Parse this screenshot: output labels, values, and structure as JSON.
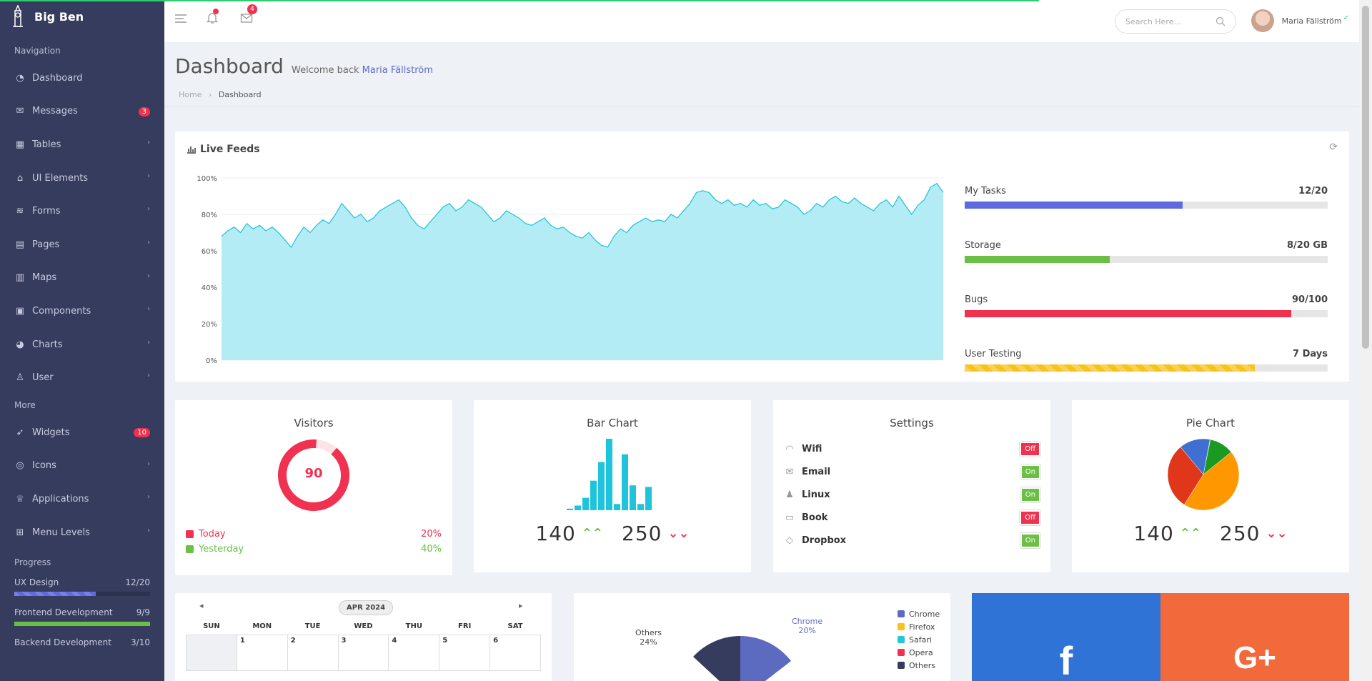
{
  "app": {
    "name": "Big Ben"
  },
  "sidebar": {
    "nav_header": "Navigation",
    "items": [
      {
        "label": "Dashboard",
        "icon": "dashboard-icon"
      },
      {
        "label": "Messages",
        "icon": "envelope-icon",
        "badge": "3"
      },
      {
        "label": "Tables",
        "icon": "table-icon"
      },
      {
        "label": "UI Elements",
        "icon": "gift-icon"
      },
      {
        "label": "Forms",
        "icon": "layers-icon"
      },
      {
        "label": "Pages",
        "icon": "pages-icon"
      },
      {
        "label": "Maps",
        "icon": "map-icon"
      },
      {
        "label": "Components",
        "icon": "briefcase-icon"
      },
      {
        "label": "Charts",
        "icon": "pie-icon"
      },
      {
        "label": "User",
        "icon": "user-icon"
      }
    ],
    "more_header": "More",
    "more_items": [
      {
        "label": "Widgets",
        "icon": "rocket-icon",
        "badge": "10"
      },
      {
        "label": "Icons",
        "icon": "compass-icon"
      },
      {
        "label": "Applications",
        "icon": "trophy-icon"
      },
      {
        "label": "Menu Levels",
        "icon": "sitemap-icon"
      }
    ],
    "progress_header": "Progress",
    "progress": [
      {
        "label": "UX Design",
        "value": "12/20",
        "fraction": 0.6,
        "color": "#5f6ae0"
      },
      {
        "label": "Frontend Development",
        "value": "9/9",
        "fraction": 1.0,
        "color": "#6abf45"
      },
      {
        "label": "Backend Development",
        "value": "3/10"
      }
    ]
  },
  "topbar": {
    "notif_badge": "",
    "mail_badge": "4",
    "search_placeholder": "Search Here...",
    "user_name": "Maria Fällström"
  },
  "page": {
    "title": "Dashboard",
    "welcome": "Welcome back",
    "welcome_name": "Maria Fällström",
    "breadcrumb_home": "Home",
    "breadcrumb_current": "Dashboard"
  },
  "live_feeds": {
    "title": "Live Feeds",
    "y_ticks": [
      "100%",
      "80%",
      "60%",
      "40%",
      "20%",
      "0%"
    ],
    "progress": [
      {
        "label": "My Tasks",
        "value": "12/20",
        "fraction": 0.6,
        "color": "#5f6ae0"
      },
      {
        "label": "Storage",
        "value": "8/20 GB",
        "fraction": 0.4,
        "color": "#6abf45"
      },
      {
        "label": "Bugs",
        "value": "90/100",
        "fraction": 0.9,
        "color": "#f0314f"
      },
      {
        "label": "User Testing",
        "value": "7 Days",
        "fraction": 0.8,
        "color": "#f8c21c"
      }
    ]
  },
  "chart_data": [
    {
      "type": "area",
      "title": "Live Feeds",
      "ylim": [
        0,
        100
      ],
      "y_unit": "%",
      "color": "#26c6da",
      "values": [
        68,
        71,
        73,
        70,
        75,
        72,
        74,
        71,
        73,
        70,
        66,
        62,
        68,
        73,
        70,
        74,
        77,
        75,
        80,
        86,
        82,
        78,
        80,
        76,
        78,
        82,
        84,
        86,
        88,
        84,
        78,
        74,
        72,
        76,
        80,
        84,
        86,
        82,
        84,
        88,
        86,
        84,
        80,
        76,
        78,
        82,
        80,
        78,
        75,
        74,
        76,
        78,
        74,
        72,
        73,
        70,
        68,
        67,
        70,
        66,
        63,
        62,
        68,
        72,
        70,
        74,
        76,
        78,
        76,
        77,
        76,
        80,
        78,
        82,
        86,
        92,
        93,
        92,
        88,
        86,
        88,
        85,
        86,
        84,
        88,
        85,
        86,
        83,
        84,
        88,
        86,
        84,
        80,
        82,
        86,
        84,
        88,
        90,
        87,
        86,
        89,
        86,
        84,
        82,
        86,
        88,
        84,
        90,
        85,
        80,
        85,
        88,
        95,
        97,
        92
      ]
    },
    {
      "type": "pie",
      "title": "Visitors",
      "center_label": "90",
      "values": [
        90,
        10
      ],
      "legend": [
        {
          "label": "Today",
          "value": "20%",
          "color": "#f0314f"
        },
        {
          "label": "Yesterday",
          "value": "40%",
          "color": "#6abf45"
        }
      ]
    },
    {
      "type": "bar",
      "title": "Bar Chart",
      "values": [
        2,
        6,
        16,
        38,
        62,
        92,
        8,
        72,
        32,
        8,
        30
      ],
      "color": "#1ec3dc",
      "stats": [
        {
          "value": "140",
          "dir": "up"
        },
        {
          "value": "250",
          "dir": "down"
        }
      ]
    },
    {
      "type": "pie",
      "title": "Pie Chart",
      "values": [
        45,
        30,
        14,
        11
      ],
      "colors": [
        "#ff9800",
        "#e0371b",
        "#3f6fd1",
        "#1b9a22"
      ],
      "stats": [
        {
          "value": "140",
          "dir": "up"
        },
        {
          "value": "250",
          "dir": "down"
        }
      ]
    },
    {
      "type": "pie",
      "legend": [
        "Chrome",
        "Firefox",
        "Safari",
        "Opera",
        "Others"
      ],
      "colors": [
        "#5c6bc0",
        "#f8c21c",
        "#26c6da",
        "#f0314f",
        "#363c5e"
      ],
      "labels": [
        {
          "name": "Chrome",
          "value": "20%"
        },
        {
          "name": "Others",
          "value": "24%"
        }
      ]
    }
  ],
  "settings": {
    "title": "Settings",
    "items": [
      {
        "label": "Wifi",
        "icon": "wifi-icon",
        "state": "Off"
      },
      {
        "label": "Email",
        "icon": "envelope-icon",
        "state": "On"
      },
      {
        "label": "Linux",
        "icon": "linux-icon",
        "state": "On"
      },
      {
        "label": "Book",
        "icon": "book-icon",
        "state": "Off"
      },
      {
        "label": "Dropbox",
        "icon": "dropbox-icon",
        "state": "On"
      }
    ],
    "on_color": "#6abf45",
    "off_color": "#f0314f"
  },
  "calendar": {
    "month": "APR 2024",
    "days": [
      "SUN",
      "MON",
      "TUE",
      "WED",
      "THU",
      "FRI",
      "SAT"
    ],
    "first_week": [
      "",
      "1",
      "2",
      "3",
      "4",
      "5",
      "6"
    ]
  },
  "social": {
    "facebook_color": "#2f73d6",
    "google_color": "#f2693b"
  }
}
